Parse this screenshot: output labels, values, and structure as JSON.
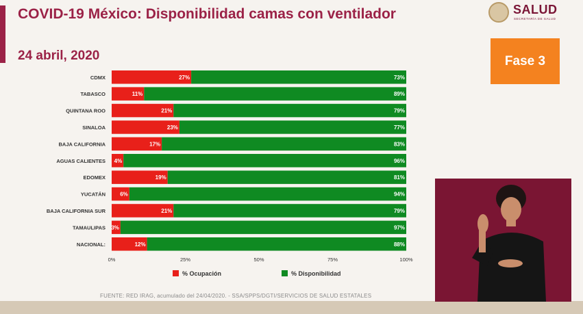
{
  "header": {
    "title": "COVID-19 México: Disponibilidad camas con ventilador",
    "date": "24 abril, 2020"
  },
  "logo": {
    "text": "SALUD",
    "subtext": "SECRETARÍA DE SALUD"
  },
  "badge": {
    "label": "Fase 3",
    "color": "#f4821f"
  },
  "source": "FUENTE: RED IRAG, acumulado del 24/04/2020. - SSA/SPPS/DGTI/SERVICIOS DE SALUD ESTATALES",
  "colors": {
    "accent": "#9b2247",
    "occupied": "#e8201a",
    "available": "#0f8a22"
  },
  "chart_data": {
    "type": "bar",
    "orientation": "horizontal",
    "stacked": true,
    "categories": [
      "CDMX",
      "TABASCO",
      "QUINTANA ROO",
      "SINALOA",
      "BAJA CALIFORNIA",
      "AGUAS CALIENTES",
      "EDOMEX",
      "YUCATÁN",
      "BAJA CALIFORNIA SUR",
      "TAMAULIPAS",
      "NACIONAL:"
    ],
    "series": [
      {
        "name": "% Ocupación",
        "color": "#e8201a",
        "values": [
          27,
          11,
          21,
          23,
          17,
          4,
          19,
          6,
          21,
          3,
          12
        ]
      },
      {
        "name": "% Disponibilidad",
        "color": "#0f8a22",
        "values": [
          73,
          89,
          79,
          77,
          83,
          96,
          81,
          94,
          79,
          97,
          88
        ]
      }
    ],
    "xticks": [
      "0%",
      "25%",
      "50%",
      "75%",
      "100%"
    ],
    "xlim": [
      0,
      100
    ],
    "legend_position": "bottom"
  }
}
